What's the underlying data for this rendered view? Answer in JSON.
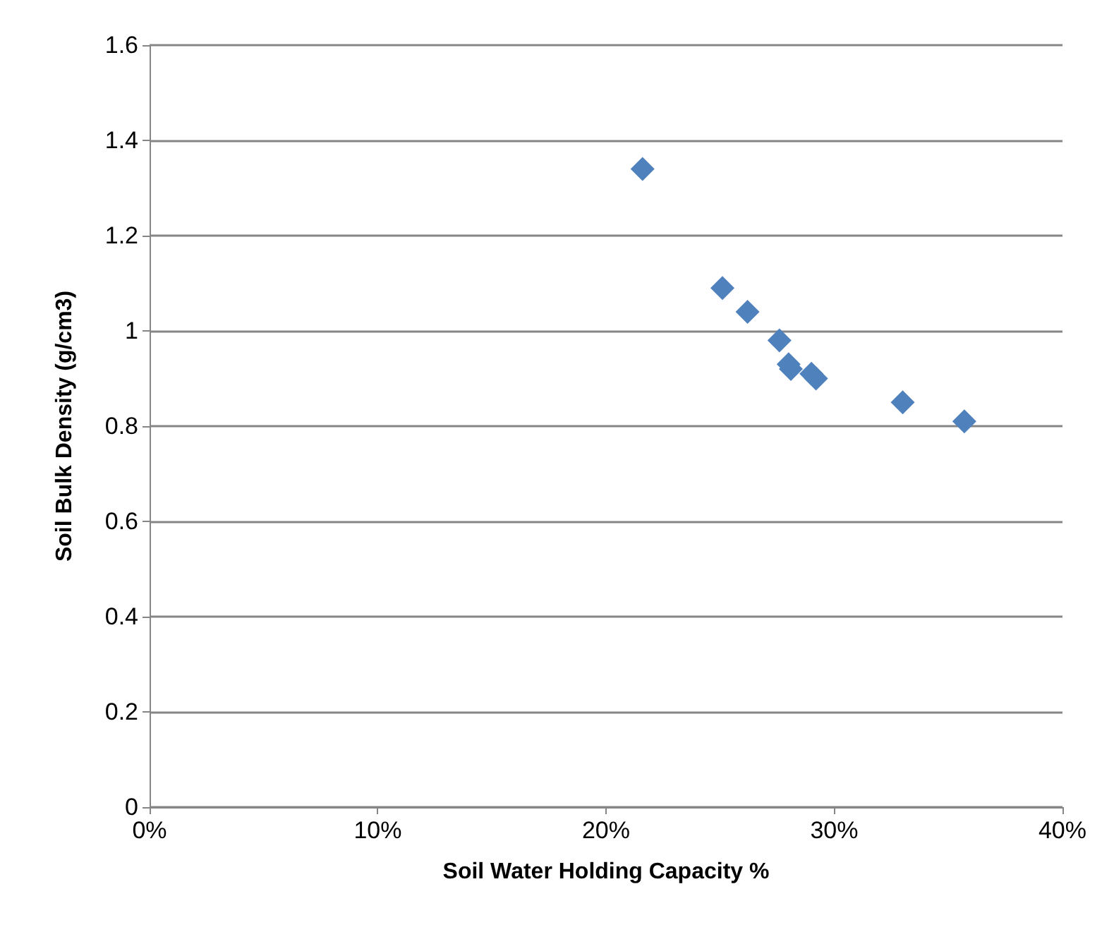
{
  "chart_data": {
    "type": "scatter",
    "xlabel": "Soil Water Holding Capacity %",
    "ylabel": "Soil Bulk Density (g/cm3)",
    "x": [
      21.6,
      25.1,
      26.2,
      27.6,
      28.0,
      28.1,
      29.0,
      29.2,
      33.0,
      35.7
    ],
    "values": [
      1.34,
      1.09,
      1.04,
      0.98,
      0.93,
      0.92,
      0.91,
      0.9,
      0.85,
      0.81
    ],
    "color": "#4f81bd",
    "marker": "diamond",
    "grid": "y",
    "xlim": [
      0,
      40
    ],
    "xticks": [
      {
        "value": 0,
        "label": "0%"
      },
      {
        "value": 10,
        "label": "10%"
      },
      {
        "value": 20,
        "label": "20%"
      },
      {
        "value": 30,
        "label": "30%"
      },
      {
        "value": 40,
        "label": "40%"
      }
    ],
    "ylim": [
      0,
      1.6
    ],
    "yticks": [
      0,
      0.2,
      0.4,
      0.6,
      0.8,
      1,
      1.2,
      1.4,
      1.6
    ]
  }
}
